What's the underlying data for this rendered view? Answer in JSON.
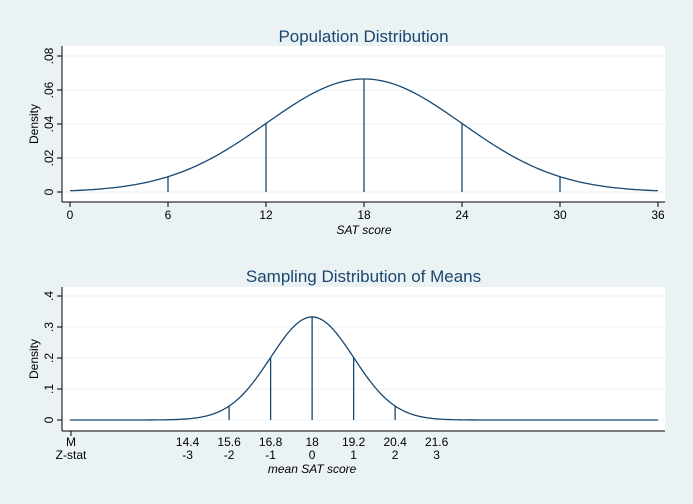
{
  "colors": {
    "background": "#eaf2f3",
    "plot_area": "#ffffff",
    "curve": "#1a476f",
    "grid": "#eaf2f3",
    "title": "#1a476f"
  },
  "chart_data": [
    {
      "type": "line",
      "title": "Population Distribution",
      "xlabel": "SAT score",
      "ylabel": "Density",
      "xlim": [
        0,
        36
      ],
      "ylim": [
        0,
        0.08
      ],
      "xticks": [
        "0",
        "6",
        "12",
        "18",
        "24",
        "30",
        "36"
      ],
      "xtick_values": [
        0,
        6,
        12,
        18,
        24,
        30,
        36
      ],
      "yticks": [
        "0",
        ".02",
        ".04",
        ".06",
        ".08"
      ],
      "ytick_values": [
        0,
        0.02,
        0.04,
        0.06,
        0.08
      ],
      "grid": true,
      "curve": {
        "distribution": "normal",
        "mean": 18,
        "sd": 6
      },
      "vertical_lines_x": [
        6,
        12,
        18,
        24,
        30
      ]
    },
    {
      "type": "line",
      "title": "Sampling Distribution of Means",
      "xlabel": "mean SAT score",
      "ylabel": "Density",
      "xlim": [
        11,
        28
      ],
      "ylim": [
        0,
        0.4
      ],
      "xtick_row1_label": "M",
      "xtick_row2_label": "Z-stat",
      "xticks_row1": [
        "14.4",
        "15.6",
        "16.8",
        "18",
        "19.2",
        "20.4",
        "21.6"
      ],
      "xticks_row2": [
        "-3",
        "-2",
        "-1",
        "0",
        "1",
        "2",
        "3"
      ],
      "xtick_values": [
        14.4,
        15.6,
        16.8,
        18,
        19.2,
        20.4,
        21.6
      ],
      "yticks": [
        "0",
        ".1",
        ".2",
        ".3",
        ".4"
      ],
      "ytick_values": [
        0,
        0.1,
        0.2,
        0.3,
        0.4
      ],
      "grid": true,
      "curve": {
        "distribution": "normal",
        "mean": 18,
        "sd": 1.2
      },
      "vertical_lines_x": [
        15.6,
        16.8,
        18,
        19.2,
        20.4
      ]
    }
  ]
}
